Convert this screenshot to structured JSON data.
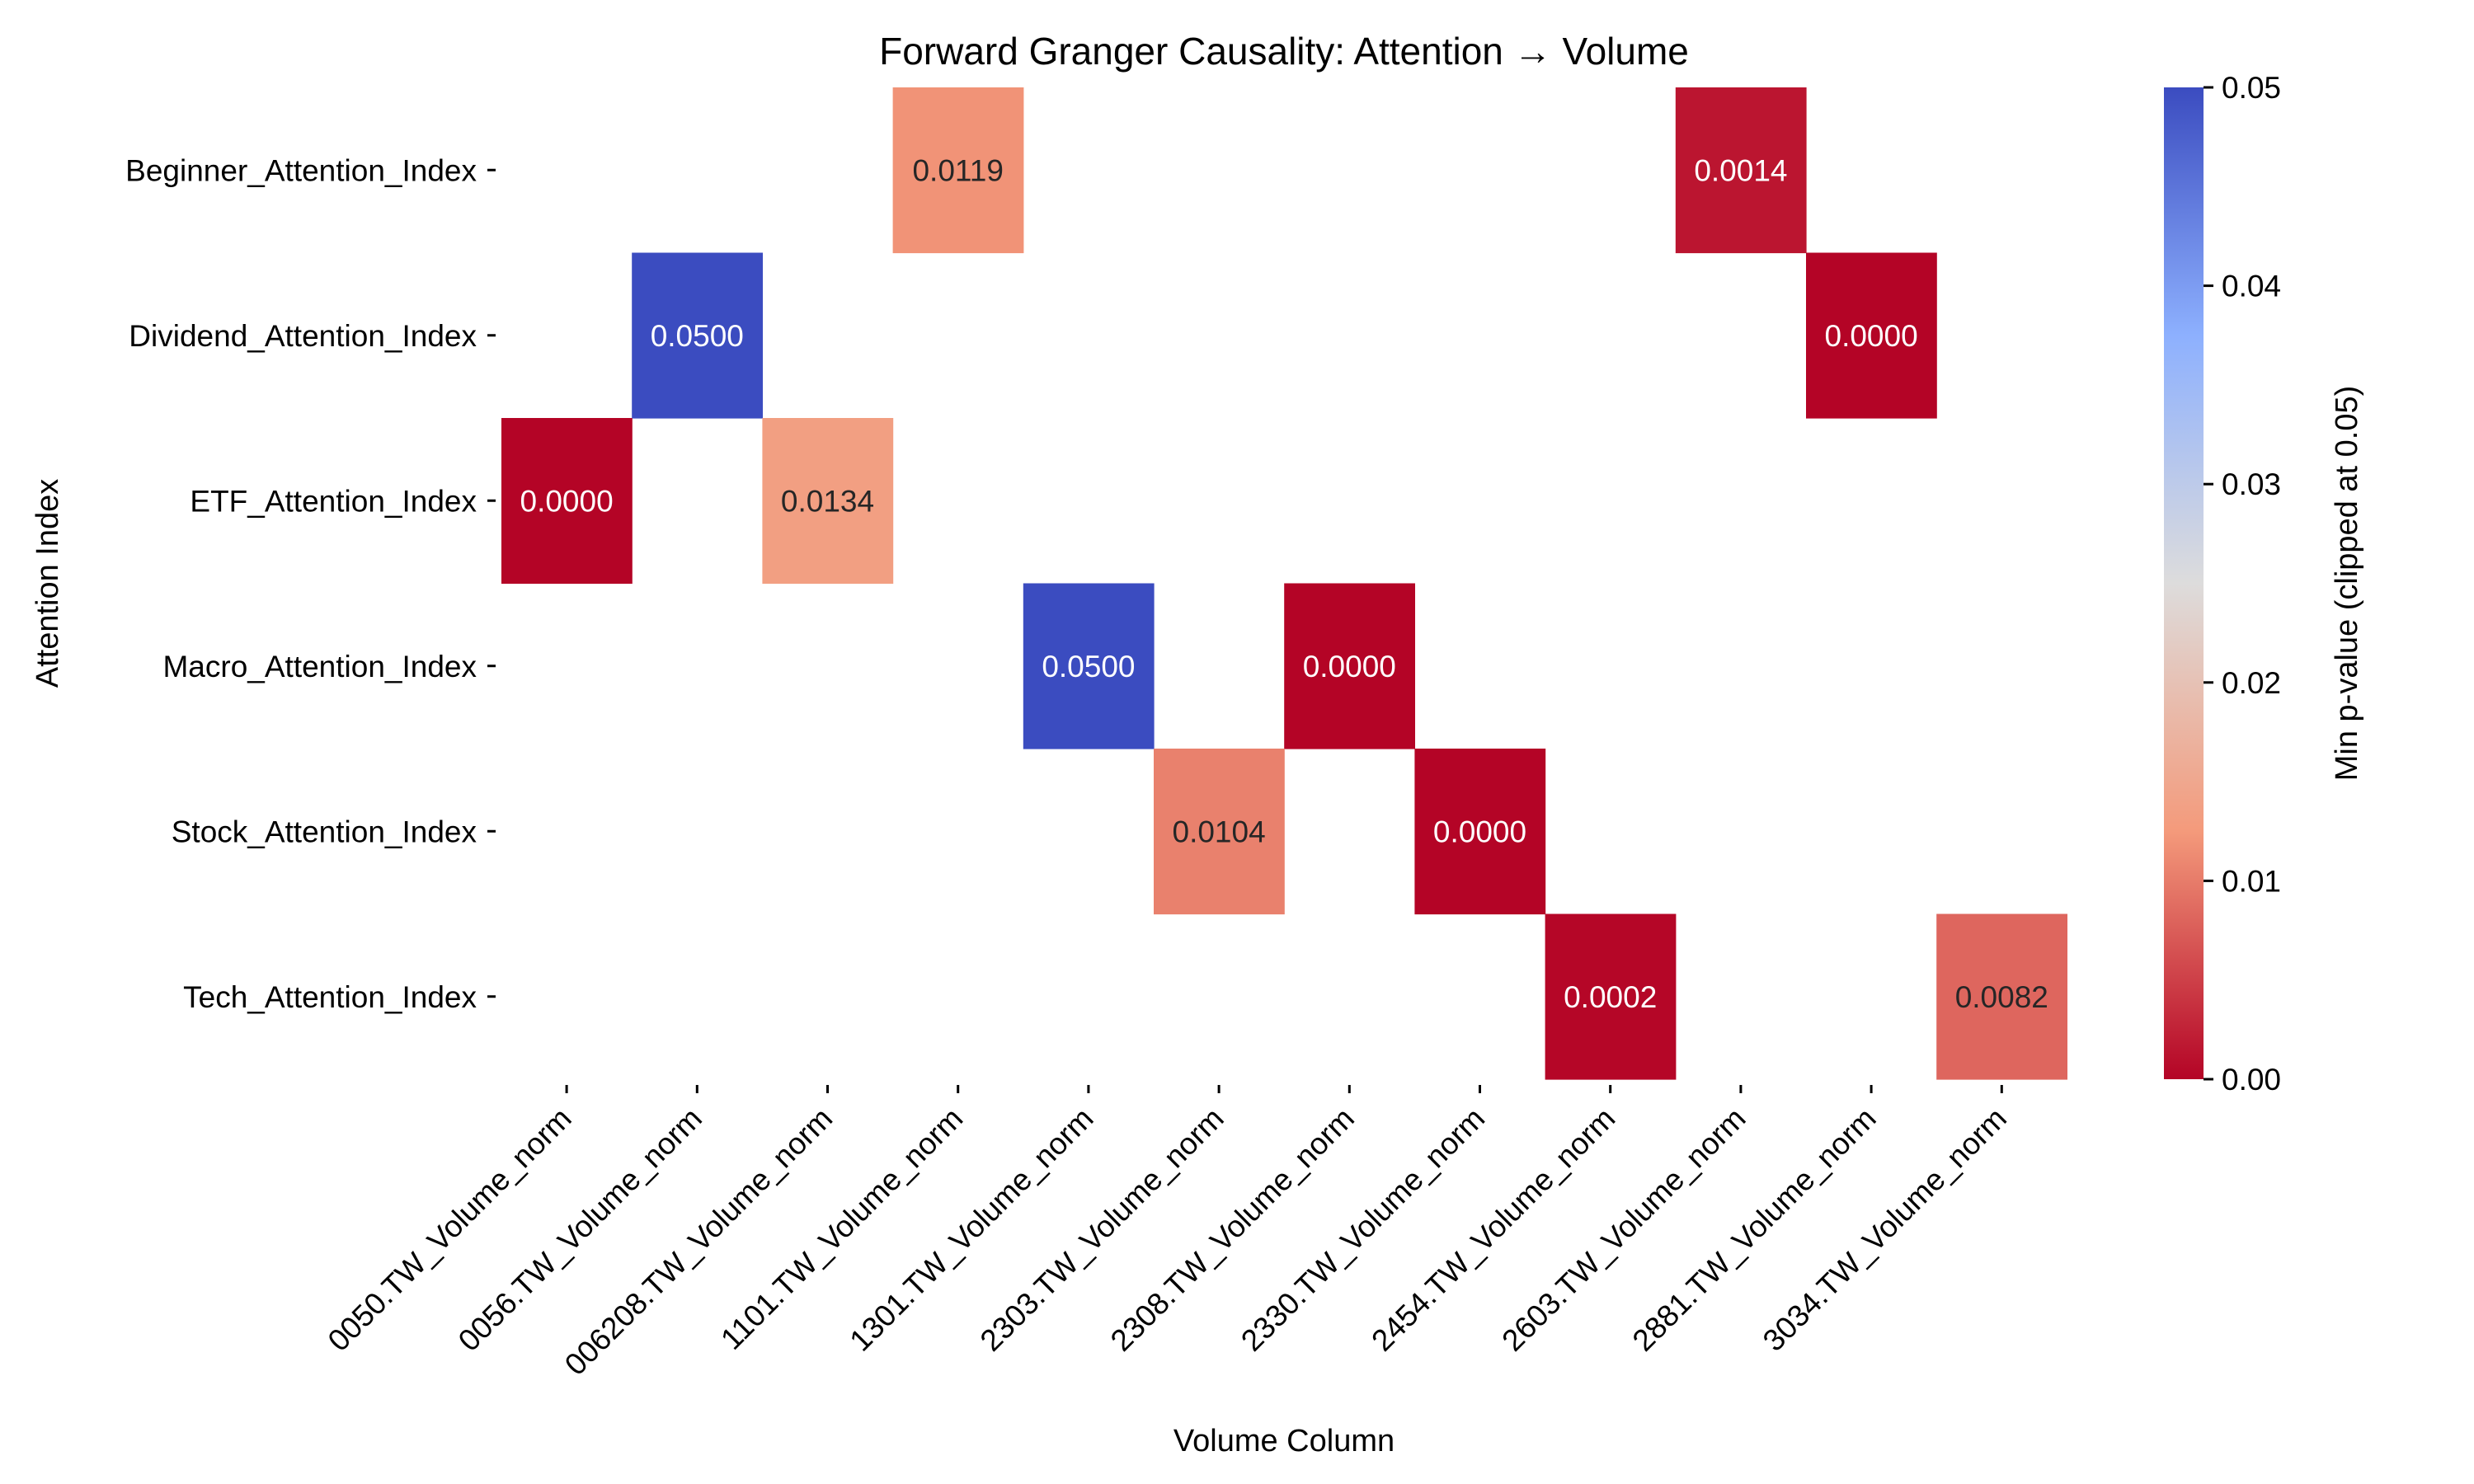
{
  "chart_data": {
    "type": "heatmap",
    "title": "Forward Granger Causality: Attention → Volume",
    "xlabel": "Volume Column",
    "ylabel": "Attention Index",
    "x_categories": [
      "0050.TW_Volume_norm",
      "0056.TW_Volume_norm",
      "006208.TW_Volume_norm",
      "1101.TW_Volume_norm",
      "1301.TW_Volume_norm",
      "2303.TW_Volume_norm",
      "2308.TW_Volume_norm",
      "2330.TW_Volume_norm",
      "2454.TW_Volume_norm",
      "2603.TW_Volume_norm",
      "2881.TW_Volume_norm",
      "3034.TW_Volume_norm"
    ],
    "y_categories": [
      "Beginner_Attention_Index",
      "Dividend_Attention_Index",
      "ETF_Attention_Index",
      "Macro_Attention_Index",
      "Stock_Attention_Index",
      "Tech_Attention_Index"
    ],
    "cells": [
      {
        "row": 0,
        "col": 3,
        "value": 0.0119,
        "label": "0.0119"
      },
      {
        "row": 0,
        "col": 9,
        "value": 0.0014,
        "label": "0.0014"
      },
      {
        "row": 1,
        "col": 1,
        "value": 0.05,
        "label": "0.0500"
      },
      {
        "row": 1,
        "col": 10,
        "value": 0.0,
        "label": "0.0000"
      },
      {
        "row": 2,
        "col": 0,
        "value": 0.0,
        "label": "0.0000"
      },
      {
        "row": 2,
        "col": 2,
        "value": 0.0134,
        "label": "0.0134"
      },
      {
        "row": 3,
        "col": 4,
        "value": 0.05,
        "label": "0.0500"
      },
      {
        "row": 3,
        "col": 6,
        "value": 0.0,
        "label": "0.0000"
      },
      {
        "row": 4,
        "col": 5,
        "value": 0.0104,
        "label": "0.0104"
      },
      {
        "row": 4,
        "col": 7,
        "value": 0.0,
        "label": "0.0000"
      },
      {
        "row": 5,
        "col": 8,
        "value": 0.0002,
        "label": "0.0002"
      },
      {
        "row": 5,
        "col": 11,
        "value": 0.0082,
        "label": "0.0082"
      }
    ],
    "colorbar": {
      "label": "Min p-value (clipped at 0.05)",
      "range": [
        0,
        0.05
      ],
      "ticks": [
        "0.00",
        "0.01",
        "0.02",
        "0.03",
        "0.04",
        "0.05"
      ],
      "colormap": "coolwarm (reversed)"
    },
    "grid": false
  }
}
